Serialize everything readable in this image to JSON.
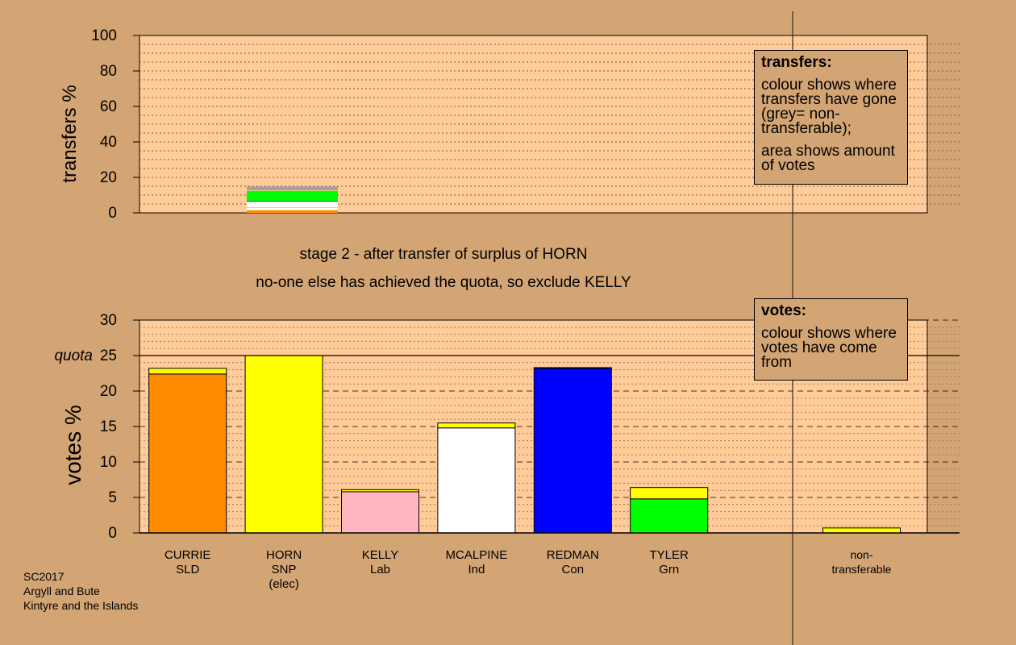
{
  "chart_data": [
    {
      "type": "bar",
      "stacked": true,
      "ylabel": "transfers %",
      "ylim": [
        0,
        100
      ],
      "yticks": [
        0,
        20,
        40,
        60,
        80,
        100
      ],
      "grid": "dotted",
      "bars": [
        {
          "category": "HORN",
          "segments": [
            {
              "color": "#ff8c00",
              "value": 1.5
            },
            {
              "color": "#ffffff",
              "value": 1.3
            },
            {
              "color": "#ffb6c1",
              "value": 0.4
            },
            {
              "color": "#ffffff",
              "value": 3.1
            },
            {
              "color": "#0000ff",
              "value": 0.4
            },
            {
              "color": "#00ff00",
              "value": 5.6
            },
            {
              "color": "#fdfd6b",
              "value": 0.3
            },
            {
              "color": "#a0a0a0",
              "value": 2.2
            }
          ]
        }
      ],
      "legend": {
        "title": "transfers:",
        "lines": [
          "colour shows where transfers have gone (grey= non-transferable);",
          "area shows amount of votes"
        ]
      }
    },
    {
      "type": "bar",
      "stacked": true,
      "ylabel": "votes %",
      "ylim": [
        0,
        30
      ],
      "yticks": [
        0,
        5,
        10,
        15,
        20,
        25,
        30
      ],
      "quota": {
        "value": 25,
        "label": "quota"
      },
      "grid": "dashed",
      "categories": [
        {
          "name": "CURRIE",
          "party": "SLD",
          "extra": ""
        },
        {
          "name": "HORN",
          "party": "SNP",
          "extra": "(elec)"
        },
        {
          "name": "KELLY",
          "party": "Lab",
          "extra": ""
        },
        {
          "name": "MCALPINE",
          "party": "Ind",
          "extra": ""
        },
        {
          "name": "REDMAN",
          "party": "Con",
          "extra": ""
        },
        {
          "name": "TYLER",
          "party": "Grn",
          "extra": ""
        },
        {
          "name": "",
          "party": "",
          "extra": ""
        },
        {
          "name": "non-",
          "party": "transferable",
          "extra": ""
        }
      ],
      "bars": [
        {
          "category": "CURRIE",
          "segments": [
            {
              "color": "#ff8c00",
              "value": 22.4
            },
            {
              "color": "#ffff00",
              "value": 0.8
            }
          ]
        },
        {
          "category": "HORN",
          "segments": [
            {
              "color": "#ffff00",
              "value": 25.0
            }
          ]
        },
        {
          "category": "KELLY",
          "segments": [
            {
              "color": "#ffb6c1",
              "value": 5.8
            },
            {
              "color": "#ffff00",
              "value": 0.3
            }
          ]
        },
        {
          "category": "MCALPINE",
          "segments": [
            {
              "color": "#ffffff",
              "value": 14.8
            },
            {
              "color": "#ffff00",
              "value": 0.7
            }
          ]
        },
        {
          "category": "REDMAN",
          "segments": [
            {
              "color": "#0000ff",
              "value": 23.2
            },
            {
              "color": "#ffff00",
              "value": 0.1
            }
          ]
        },
        {
          "category": "TYLER",
          "segments": [
            {
              "color": "#00ff00",
              "value": 4.8
            },
            {
              "color": "#ffff00",
              "value": 1.6
            }
          ]
        },
        {
          "category": "",
          "segments": []
        },
        {
          "category": "non-transferable",
          "segments": [
            {
              "color": "#ffff00",
              "value": 0.7
            }
          ]
        }
      ],
      "legend": {
        "title": "votes:",
        "lines": [
          "colour shows where votes have come from"
        ]
      }
    }
  ],
  "captions": {
    "line1": "stage 2 - after transfer of surplus of HORN",
    "line2": "no-one else has achieved the quota, so exclude KELLY"
  },
  "footer": {
    "line1": "SC2017",
    "line2": "Argyll and Bute",
    "line3": "Kintyre and the Islands"
  },
  "colors": {
    "background": "#d4a574",
    "panel": "#ffcc99",
    "non_transferable": "#a0a0a0"
  }
}
